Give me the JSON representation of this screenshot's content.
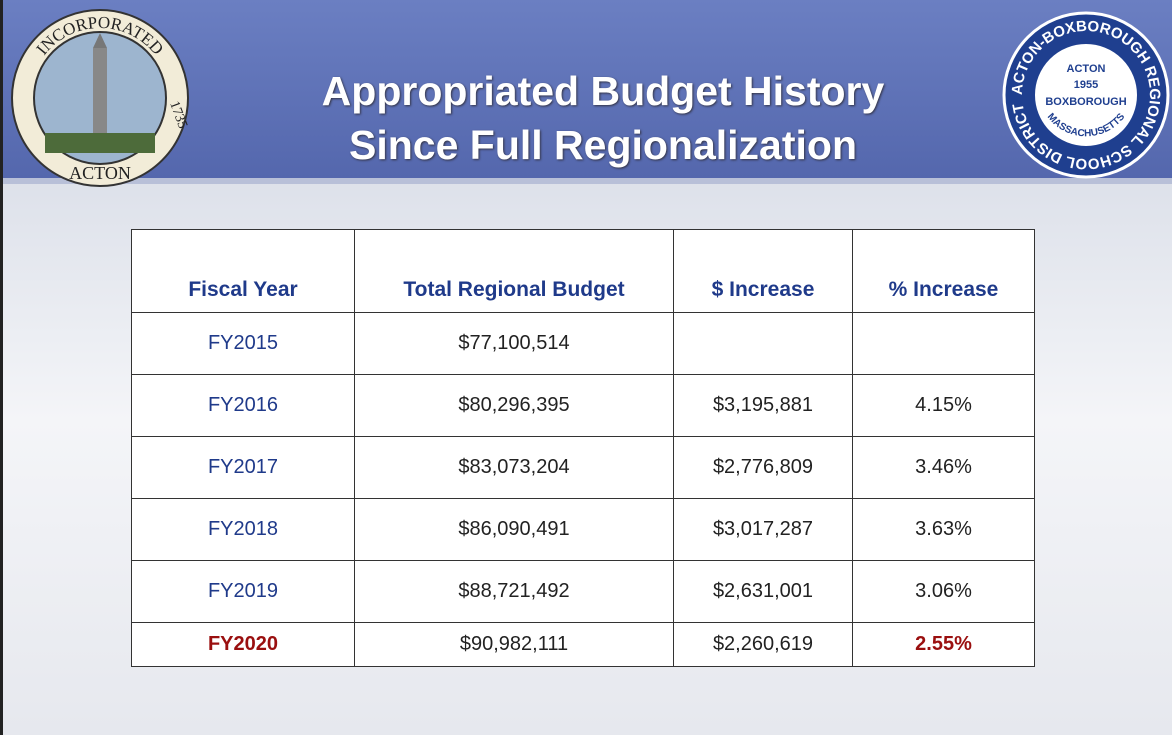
{
  "header": {
    "title_lines": [
      "Appropriated Budget History",
      "Since Full Regionalization"
    ]
  },
  "logos": {
    "left": {
      "top": "INCORPORATED",
      "year": "1735",
      "bottom": "ACTON"
    },
    "right": {
      "ring": "ACTON-BOXBOROUGH REGIONAL SCHOOL DISTRICT",
      "center": [
        "ACTON",
        "1955",
        "BOXBOROUGH"
      ],
      "lower": "MASSACHUSETTS"
    }
  },
  "table": {
    "columns": [
      "Fiscal Year",
      "Total Regional Budget",
      "$ Increase",
      "% Increase"
    ],
    "rows": [
      [
        "FY2015",
        "$77,100,514"
      ],
      [
        "FY2016",
        "$80,296,395",
        "$3,195,881",
        "4.15%"
      ],
      [
        "FY2017",
        "$83,073,204",
        "$2,776,809",
        "3.46%"
      ],
      [
        "FY2018",
        "$86,090,491",
        "$3,017,287",
        "3.63%"
      ],
      [
        "FY2019",
        "$88,721,492",
        "$2,631,001",
        "3.06%"
      ],
      [
        "FY2020",
        "$90,982,111",
        "$2,260,619",
        "2.55%"
      ]
    ]
  }
}
